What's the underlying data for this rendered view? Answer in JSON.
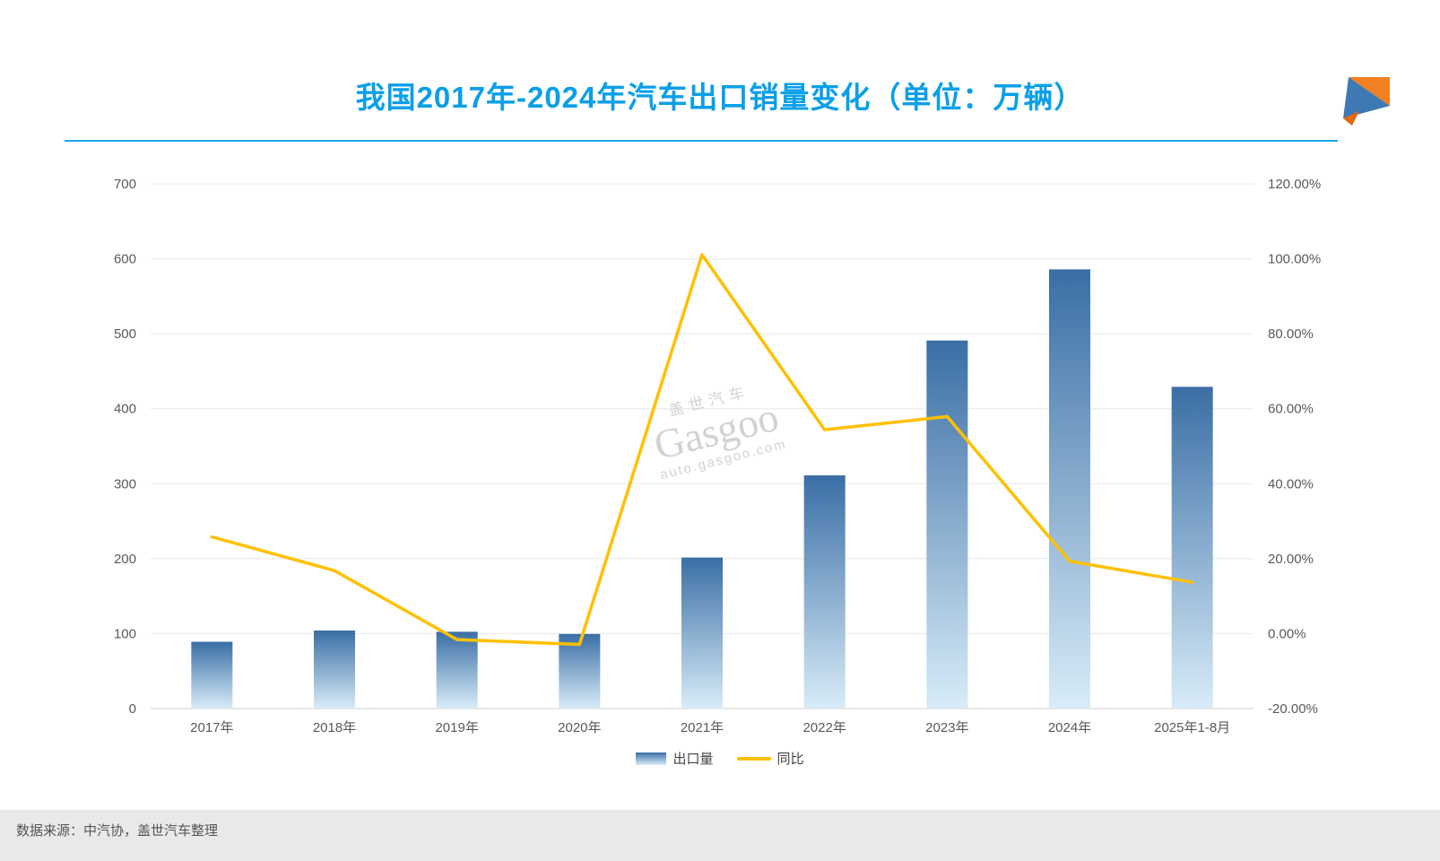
{
  "title": "我国2017年-2024年汽车出口销量变化（单位：万辆）",
  "watermark": {
    "cn": "盖世汽车",
    "brand": "Gasgoo",
    "url": "auto.gasgoo.com"
  },
  "footer": {
    "source": "数据来源：中汽协，盖世汽车整理"
  },
  "legend": [
    {
      "label": "出口量",
      "type": "bar"
    },
    {
      "label": "同比",
      "type": "line"
    }
  ],
  "logo_colors": {
    "orange": "#f08021",
    "blue": "#3f79b4",
    "dark_orange": "#e06a10"
  },
  "chart_data": {
    "type": "bar",
    "title": "我国2017年-2024年汽车出口销量变化（单位：万辆）",
    "categories": [
      "2017年",
      "2018年",
      "2019年",
      "2020年",
      "2021年",
      "2022年",
      "2023年",
      "2024年",
      "2025年1-8月"
    ],
    "series": [
      {
        "name": "出口量",
        "type": "bar",
        "axis": "left",
        "values": [
          89.1,
          104.1,
          102.4,
          99.5,
          201.5,
          311.1,
          491.0,
          585.9,
          429.2
        ]
      },
      {
        "name": "同比",
        "type": "line",
        "axis": "right",
        "values": [
          25.8,
          16.8,
          -1.6,
          -2.9,
          101.1,
          54.4,
          57.9,
          19.3,
          13.7
        ]
      }
    ],
    "left_axis": {
      "min": 0,
      "max": 700,
      "step": 100,
      "ticks": [
        "0",
        "100",
        "200",
        "300",
        "400",
        "500",
        "600",
        "700"
      ]
    },
    "right_axis": {
      "min": -20,
      "max": 120,
      "step": 20,
      "ticks": [
        "-20.00%",
        "0.00%",
        "20.00%",
        "40.00%",
        "60.00%",
        "80.00%",
        "100.00%",
        "120.00%"
      ]
    },
    "grid": true,
    "legend_position": "bottom",
    "colors": {
      "bar_top": "#3a6ea5",
      "bar_bottom": "#d8ecf8",
      "line": "#ffc000",
      "grid": "#e8e8e8",
      "baseline": "#cfcfcf",
      "axis_text": "#595959"
    }
  }
}
